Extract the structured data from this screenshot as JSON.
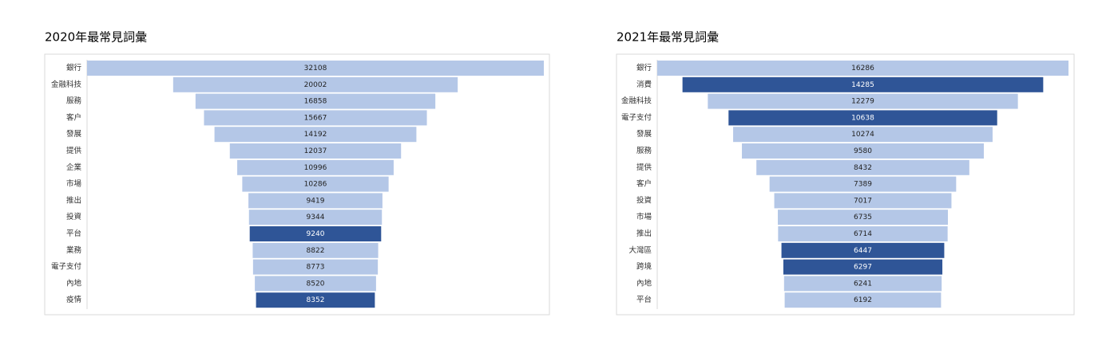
{
  "chart_data": [
    {
      "type": "funnel",
      "title": "2020年最常見詞彙",
      "categories": [
        "銀行",
        "金融科技",
        "服務",
        "客户",
        "發展",
        "提供",
        "企業",
        "市場",
        "推出",
        "投資",
        "平台",
        "業務",
        "電子支付",
        "內地",
        "疫情"
      ],
      "values": [
        32108,
        20002,
        16858,
        15667,
        14192,
        12037,
        10996,
        10286,
        9419,
        9344,
        9240,
        8822,
        8773,
        8520,
        8352
      ],
      "colors": [
        "#b4c7e7",
        "#b4c7e7",
        "#b4c7e7",
        "#b4c7e7",
        "#b4c7e7",
        "#b4c7e7",
        "#b4c7e7",
        "#b4c7e7",
        "#b4c7e7",
        "#b4c7e7",
        "#2f5597",
        "#b4c7e7",
        "#b4c7e7",
        "#b4c7e7",
        "#2f5597"
      ]
    },
    {
      "type": "funnel",
      "title": "2021年最常見詞彙",
      "categories": [
        "銀行",
        "消費",
        "金融科技",
        "電子支付",
        "發展",
        "服務",
        "提供",
        "客户",
        "投資",
        "市場",
        "推出",
        "大灣區",
        "跨境",
        "內地",
        "平台"
      ],
      "values": [
        16286,
        14285,
        12279,
        10638,
        10274,
        9580,
        8432,
        7389,
        7017,
        6735,
        6714,
        6447,
        6297,
        6241,
        6192
      ],
      "colors": [
        "#b4c7e7",
        "#2f5597",
        "#b4c7e7",
        "#2f5597",
        "#b4c7e7",
        "#b4c7e7",
        "#b4c7e7",
        "#b4c7e7",
        "#b4c7e7",
        "#b4c7e7",
        "#b4c7e7",
        "#2f5597",
        "#2f5597",
        "#b4c7e7",
        "#b4c7e7"
      ]
    }
  ]
}
